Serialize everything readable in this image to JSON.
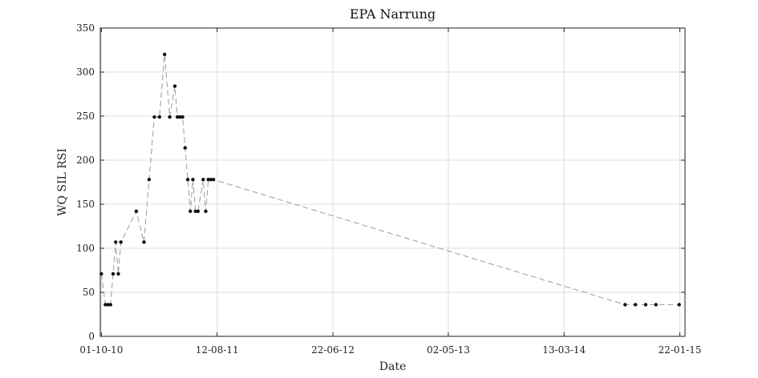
{
  "chart_data": {
    "type": "line",
    "title": "EPA Narrung",
    "xlabel": "Date",
    "ylabel": "WQ SIL RSI",
    "ylim": [
      0,
      350
    ],
    "yticks": [
      0,
      50,
      100,
      150,
      200,
      250,
      300,
      350
    ],
    "xlim": [
      "2010-09-28",
      "2015-02-05"
    ],
    "xticks": [
      "2010-10-01",
      "2011-08-12",
      "2012-06-22",
      "2013-05-02",
      "2014-03-13",
      "2015-01-22"
    ],
    "xtick_labels": [
      "01-10-10",
      "12-08-11",
      "22-06-12",
      "02-05-13",
      "13-03-14",
      "22-01-15"
    ],
    "grid": true,
    "line_style": "dashed",
    "line_color": "#9a9a9a",
    "marker_color": "#111111",
    "x": [
      "2010-10-01",
      "2010-10-12",
      "2010-10-19",
      "2010-10-26",
      "2010-11-02",
      "2010-11-09",
      "2010-11-16",
      "2010-11-23",
      "2011-01-04",
      "2011-01-25",
      "2011-02-08",
      "2011-02-22",
      "2011-03-08",
      "2011-03-22",
      "2011-04-05",
      "2011-04-19",
      "2011-04-26",
      "2011-05-03",
      "2011-05-10",
      "2011-05-17",
      "2011-05-24",
      "2011-05-31",
      "2011-06-07",
      "2011-06-14",
      "2011-06-21",
      "2011-07-05",
      "2011-07-12",
      "2011-07-19",
      "2011-07-26",
      "2011-08-02",
      "2014-08-26",
      "2014-09-23",
      "2014-10-21",
      "2014-11-18",
      "2015-01-20"
    ],
    "y": [
      71,
      36,
      36,
      36,
      71,
      107,
      71,
      107,
      142,
      107,
      178,
      249,
      249,
      320,
      249,
      284,
      249,
      249,
      249,
      214,
      178,
      142,
      178,
      142,
      142,
      178,
      142,
      178,
      178,
      178,
      36,
      36,
      36,
      36,
      36
    ]
  }
}
